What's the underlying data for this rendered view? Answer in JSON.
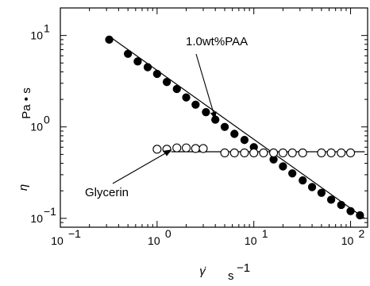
{
  "chart_data": {
    "type": "scatter",
    "x_scale": "log",
    "y_scale": "log",
    "xlim": [
      0.1,
      150
    ],
    "ylim": [
      0.08,
      20
    ],
    "x_ticks": [
      {
        "value": 0.1,
        "base": "10",
        "exp": "−1"
      },
      {
        "value": 1,
        "base": "10",
        "exp": "0"
      },
      {
        "value": 10,
        "base": "10",
        "exp": "1"
      },
      {
        "value": 100,
        "base": "10",
        "exp": "2"
      }
    ],
    "y_ticks": [
      {
        "value": 0.1,
        "base": "10",
        "exp": "−1"
      },
      {
        "value": 1,
        "base": "10",
        "exp": "0"
      },
      {
        "value": 10,
        "base": "10",
        "exp": "1"
      }
    ],
    "xlabel": {
      "symbol": "γ̇",
      "unit_base": "s",
      "unit_exp": "−1"
    },
    "ylabel": {
      "symbol": "η",
      "unit": "Pa • s"
    },
    "grid": false,
    "series": [
      {
        "name": "1.0wt%PAA",
        "marker": "filled-circle",
        "color": "#000000",
        "x": [
          0.32,
          0.5,
          0.63,
          0.8,
          1.0,
          1.26,
          1.6,
          2.0,
          2.5,
          3.2,
          4.0,
          5.0,
          6.3,
          8.0,
          10.0,
          12.6,
          16.0,
          20.0,
          25.0,
          32.0,
          40.0,
          50.0,
          63.0,
          80.0,
          100.0,
          125.0
        ],
        "y": [
          9.0,
          6.3,
          5.2,
          4.5,
          3.8,
          3.1,
          2.6,
          2.1,
          1.75,
          1.45,
          1.2,
          1.0,
          0.84,
          0.72,
          0.6,
          0.52,
          0.44,
          0.37,
          0.31,
          0.26,
          0.22,
          0.19,
          0.16,
          0.14,
          0.12,
          0.108
        ]
      },
      {
        "name": "Glycerin",
        "marker": "open-circle",
        "color": "#000000",
        "x": [
          1.0,
          1.26,
          1.6,
          2.0,
          2.5,
          3.0,
          5.0,
          6.3,
          8.0,
          10.0,
          12.6,
          16.0,
          20.0,
          25.0,
          32.0,
          50.0,
          63.0,
          80.0,
          100.0
        ],
        "y": [
          0.57,
          0.57,
          0.59,
          0.59,
          0.58,
          0.58,
          0.52,
          0.52,
          0.52,
          0.52,
          0.52,
          0.52,
          0.52,
          0.52,
          0.52,
          0.52,
          0.52,
          0.52,
          0.52
        ]
      }
    ],
    "fit_lines": [
      {
        "name": "PAA fit",
        "x": [
          0.32,
          140
        ],
        "y": [
          9.8,
          0.1
        ]
      },
      {
        "name": "Glycerin fit",
        "x": [
          1.4,
          140
        ],
        "y": [
          0.535,
          0.535
        ]
      }
    ],
    "annotations": [
      {
        "label": "1.0wt%PAA",
        "arrow_to": {
          "x": 4.0,
          "y": 1.22
        }
      },
      {
        "label": "Glycerin",
        "arrow_to": {
          "x": 1.4,
          "y": 0.56
        }
      }
    ]
  }
}
